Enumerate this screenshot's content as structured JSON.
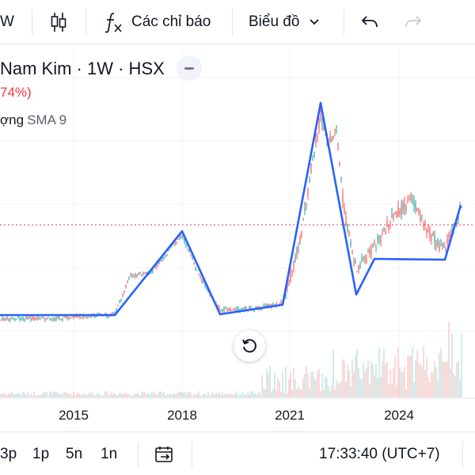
{
  "toolbar": {
    "interval_partial": "W",
    "indicators_label": "Các chỉ báo",
    "chart_type_label": "Biểu đồ"
  },
  "legend": {
    "symbol_title": "Nam Kim · 1W · HSX",
    "change": "74%)",
    "indicator_prefix": "ợng",
    "indicator_name": "SMA 9"
  },
  "x_axis": {
    "ticks": [
      {
        "label": "2015"
      },
      {
        "label": "2018"
      },
      {
        "label": "2021"
      },
      {
        "label": "2024"
      }
    ]
  },
  "bottombar": {
    "ranges": [
      "3p",
      "1p",
      "5n",
      "1n"
    ],
    "clock": "17:33:40 (UTC+7)"
  },
  "colors": {
    "up": "#26a69a",
    "down": "#ef5350",
    "trendline": "#2962ff",
    "price_line": "#f23645"
  }
}
